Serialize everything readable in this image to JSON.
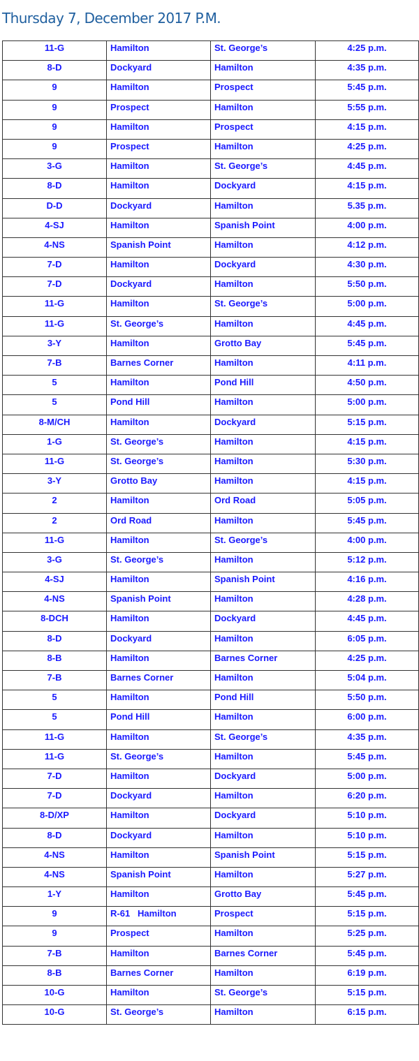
{
  "title": "Thursday 7, December 2017 P.M.",
  "colors": {
    "title": "#1f5f9f",
    "text": "#1a1aff",
    "border": "#333333"
  },
  "rows": [
    [
      "11-G",
      "Hamilton",
      "St. George’s",
      "4:25 p.m."
    ],
    [
      "8-D",
      "Dockyard",
      "Hamilton",
      "4:35 p.m."
    ],
    [
      "9",
      "Hamilton",
      "Prospect",
      "5:45 p.m."
    ],
    [
      "9",
      "Prospect",
      "Hamilton",
      "5:55 p.m."
    ],
    [
      "9",
      "Hamilton",
      "Prospect",
      "4:15 p.m."
    ],
    [
      "9",
      "Prospect",
      "Hamilton",
      "4:25 p.m."
    ],
    [
      "3-G",
      "Hamilton",
      "St. George’s",
      "4:45 p.m."
    ],
    [
      "8-D",
      "Hamilton",
      "Dockyard",
      "4:15 p.m."
    ],
    [
      "D-D",
      "Dockyard",
      "Hamilton",
      "5.35 p.m."
    ],
    [
      "4-SJ",
      "Hamilton",
      "Spanish Point",
      "4:00 p.m."
    ],
    [
      "4-NS",
      "Spanish Point",
      "Hamilton",
      "4:12 p.m."
    ],
    [
      "7-D",
      "Hamilton",
      "Dockyard",
      "4:30 p.m."
    ],
    [
      "7-D",
      "Dockyard",
      "Hamilton",
      "5:50 p.m."
    ],
    [
      "11-G",
      "Hamilton",
      "St. George’s",
      "5:00 p.m."
    ],
    [
      "11-G",
      "St. George’s",
      "Hamilton",
      "4:45 p.m."
    ],
    [
      "3-Y",
      "Hamilton",
      "Grotto Bay",
      "5:45 p.m."
    ],
    [
      "7-B",
      "Barnes Corner",
      "Hamilton",
      "4:11 p.m."
    ],
    [
      "5",
      "Hamilton",
      "Pond Hill",
      "4:50 p.m."
    ],
    [
      "5",
      "Pond Hill",
      "Hamilton",
      "5:00 p.m."
    ],
    [
      "8-M/CH",
      "Hamilton",
      "Dockyard",
      "5:15 p.m."
    ],
    [
      "1-G",
      "St. George’s",
      "Hamilton",
      "4:15 p.m."
    ],
    [
      "11-G",
      "St. George’s",
      "Hamilton",
      "5:30 p.m."
    ],
    [
      "3-Y",
      "Grotto Bay",
      "Hamilton",
      "4:15 p.m."
    ],
    [
      "2",
      "Hamilton",
      "Ord Road",
      "5:05 p.m."
    ],
    [
      "2",
      "Ord Road",
      "Hamilton",
      "5:45 p.m."
    ],
    [
      "11-G",
      "Hamilton",
      "St. George’s",
      "4:00 p.m."
    ],
    [
      "3-G",
      "St. George’s",
      "Hamilton",
      "5:12 p.m."
    ],
    [
      "4-SJ",
      "Hamilton",
      "Spanish Point",
      "4:16 p.m."
    ],
    [
      "4-NS",
      "Spanish Point",
      "Hamilton",
      "4:28 p.m."
    ],
    [
      "8-DCH",
      "Hamilton",
      "Dockyard",
      "4:45 p.m."
    ],
    [
      "8-D",
      "Dockyard",
      "Hamilton",
      "6:05 p.m."
    ],
    [
      "8-B",
      "Hamilton",
      "Barnes Corner",
      "4:25 p.m."
    ],
    [
      "7-B",
      "Barnes Corner",
      "Hamilton",
      "5:04 p.m."
    ],
    [
      "5",
      "Hamilton",
      "Pond Hill",
      "5:50 p.m."
    ],
    [
      "5",
      "Pond Hill",
      "Hamilton",
      "6:00 p.m."
    ],
    [
      "11-G",
      "Hamilton",
      "St. George’s",
      "4:35 p.m."
    ],
    [
      "11-G",
      "St. George’s",
      "Hamilton",
      "5:45 p.m."
    ],
    [
      "7-D",
      "Hamilton",
      "Dockyard",
      "5:00 p.m."
    ],
    [
      "7-D",
      "Dockyard",
      "Hamilton",
      "6:20 p.m."
    ],
    [
      "8-D/XP",
      "Hamilton",
      "Dockyard",
      "5:10 p.m."
    ],
    [
      "8-D",
      "Dockyard",
      "Hamilton",
      "5:10 p.m."
    ],
    [
      "4-NS",
      "Hamilton",
      "Spanish Point",
      "5:15 p.m."
    ],
    [
      "4-NS",
      "Spanish Point",
      "Hamilton",
      "5:27 p.m."
    ],
    [
      "1-Y",
      "Hamilton",
      "Grotto Bay",
      "5:45 p.m."
    ],
    [
      "9",
      "R-61   Hamilton",
      "Prospect",
      "5:15 p.m."
    ],
    [
      "9",
      "Prospect",
      "Hamilton",
      "5:25 p.m."
    ],
    [
      "7-B",
      "Hamilton",
      "Barnes Corner",
      "5:45 p.m."
    ],
    [
      "8-B",
      "Barnes Corner",
      "Hamilton",
      "6:19 p.m."
    ],
    [
      "10-G",
      "Hamilton",
      "St. George’s",
      "5:15 p.m."
    ],
    [
      "10-G",
      "St. George’s",
      "Hamilton",
      "6:15 p.m."
    ]
  ]
}
